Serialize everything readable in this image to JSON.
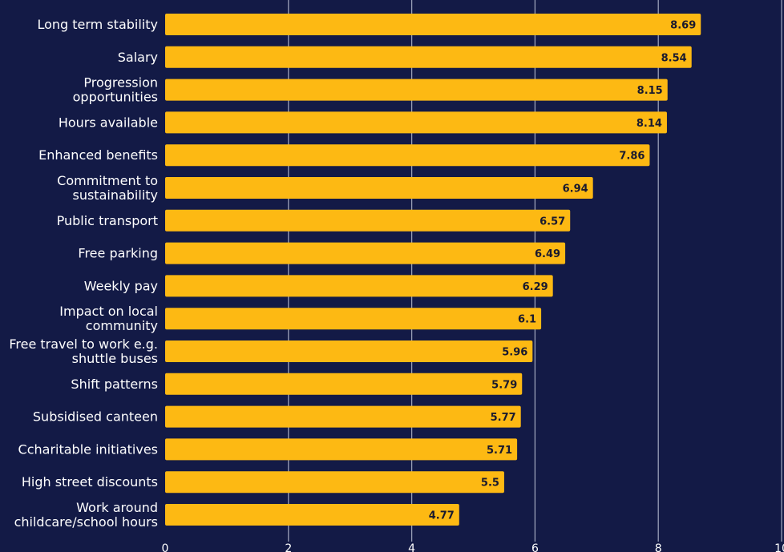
{
  "chart_data": {
    "type": "bar",
    "orientation": "horizontal",
    "categories": [
      "Long term stability",
      "Salary",
      "Progression opportunities",
      "Hours available",
      "Enhanced benefits",
      "Commitment to sustainability",
      "Public transport",
      "Free parking",
      "Weekly pay",
      "Impact on local community",
      "Free travel to work e.g. shuttle buses",
      "Shift patterns",
      "Subsidised canteen",
      "Ccharitable initiatives",
      "High street discounts",
      "Work around childcare/school hours"
    ],
    "category_lines": [
      [
        "Long term stability"
      ],
      [
        "Salary"
      ],
      [
        "Progression",
        "opportunities"
      ],
      [
        "Hours available"
      ],
      [
        "Enhanced benefits"
      ],
      [
        "Commitment to",
        "sustainability"
      ],
      [
        "Public transport"
      ],
      [
        "Free parking"
      ],
      [
        "Weekly pay"
      ],
      [
        "Impact on local",
        "community"
      ],
      [
        "Free travel to work e.g.",
        "shuttle buses"
      ],
      [
        "Shift patterns"
      ],
      [
        "Subsidised canteen"
      ],
      [
        "Ccharitable initiatives"
      ],
      [
        "High street discounts"
      ],
      [
        "Work around",
        "childcare/school hours"
      ]
    ],
    "values": [
      8.69,
      8.54,
      8.15,
      8.14,
      7.86,
      6.94,
      6.57,
      6.49,
      6.29,
      6.1,
      5.96,
      5.79,
      5.77,
      5.71,
      5.5,
      4.77
    ],
    "value_labels": [
      "8.69",
      "8.54",
      "8.15",
      "8.14",
      "7.86",
      "6.94",
      "6.57",
      "6.49",
      "6.29",
      "6.1",
      "5.96",
      "5.79",
      "5.77",
      "5.71",
      "5.5",
      "4.77"
    ],
    "xlim": [
      0,
      10
    ],
    "xticks": [
      0,
      2,
      4,
      6,
      8,
      10
    ],
    "xtick_labels": [
      "0",
      "2",
      "4",
      "6",
      "8",
      "10"
    ],
    "grid": true,
    "legend": "none",
    "title": "",
    "xlabel": "",
    "ylabel": "",
    "colors": {
      "background": "#131a46",
      "bar": "#fdb913",
      "grid": "#9aa0b8",
      "text": "#ffffff",
      "value_text": "#1a1a2e"
    }
  }
}
